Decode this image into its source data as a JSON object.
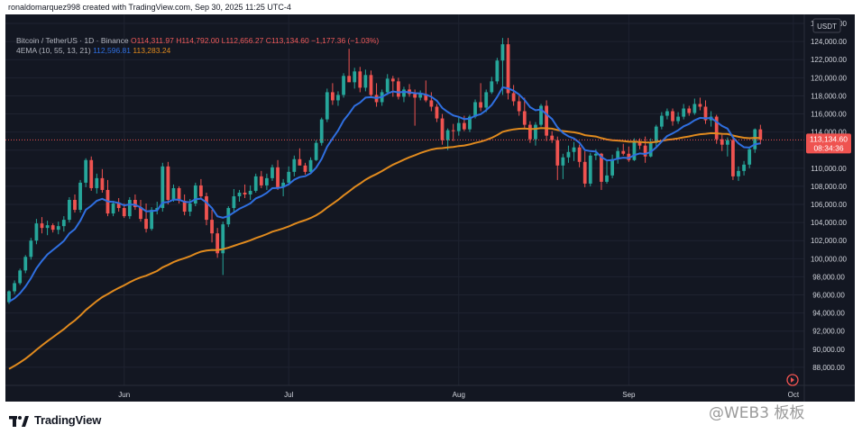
{
  "header": {
    "credit": "ronaldomarquez998 created with TradingView.com, Sep 30, 2025 11:25 UTC-4"
  },
  "legend": {
    "symbol": "Bitcoin / TetherUS · 1D · Binance",
    "open": "O114,311.97",
    "high": "H114,792.00",
    "low": "L112,656.27",
    "close": "C113,134.60",
    "change": "−1,177.36 (−1.03%)",
    "indicator": "4EMA (10, 55, 13, 21)",
    "ema_fast": "112,596.81",
    "ema_slow": "113,283.24"
  },
  "price_badge": {
    "price": "113,134.60",
    "countdown": "08:34:36"
  },
  "currency_label": "USDT",
  "footer": {
    "brand": "TradingView",
    "watermark": "@WEB3 板板"
  },
  "colors": {
    "background": "#131722",
    "up": "#26a69a",
    "down": "#ef5350",
    "ema_fast": "#2f6fe0",
    "ema_slow": "#e08a1e"
  },
  "chart_data": {
    "type": "candlestick",
    "title": "Bitcoin / TetherUS · 1D · Binance",
    "ylim": [
      86000,
      127000
    ],
    "y_ticks": [
      88000,
      90000,
      92000,
      94000,
      96000,
      98000,
      100000,
      102000,
      104000,
      106000,
      108000,
      110000,
      112000,
      114000,
      116000,
      118000,
      120000,
      122000,
      124000,
      126000
    ],
    "y_tick_labels": [
      "88,000.00",
      "90,000.00",
      "92,000.00",
      "94,000.00",
      "96,000.00",
      "98,000.00",
      "100,000.00",
      "102,000.00",
      "104,000.00",
      "106,000.00",
      "108,000.00",
      "110,000.00",
      "112,000.00",
      "114,000.00",
      "116,000.00",
      "118,000.00",
      "120,000.00",
      "122,000.00",
      "124,000.00",
      "126,000.00"
    ],
    "x_labels": [
      {
        "label": "Jun",
        "index": 21
      },
      {
        "label": "Jul",
        "index": 51
      },
      {
        "label": "Aug",
        "index": 82
      },
      {
        "label": "Sep",
        "index": 113
      },
      {
        "label": "Oct",
        "index": 143
      }
    ],
    "x_count": 145,
    "grid": true,
    "last_price": 113134.6,
    "candles": [
      [
        95200,
        96500,
        95000,
        96400
      ],
      [
        96400,
        97600,
        96100,
        97300
      ],
      [
        97300,
        98900,
        97100,
        98700
      ],
      [
        98700,
        100400,
        98400,
        100200
      ],
      [
        100200,
        102300,
        99900,
        102000
      ],
      [
        102000,
        104400,
        101600,
        103900
      ],
      [
        103900,
        104600,
        102800,
        103400
      ],
      [
        103400,
        104200,
        102600,
        103700
      ],
      [
        103700,
        103900,
        102900,
        103200
      ],
      [
        103200,
        104100,
        102700,
        103600
      ],
      [
        103600,
        104700,
        103000,
        104300
      ],
      [
        104300,
        106800,
        104000,
        106500
      ],
      [
        106500,
        107100,
        105100,
        105400
      ],
      [
        105400,
        108700,
        105100,
        108400
      ],
      [
        108400,
        111100,
        107900,
        110900
      ],
      [
        110900,
        111300,
        107500,
        107800
      ],
      [
        107800,
        109400,
        107200,
        108900
      ],
      [
        108900,
        109900,
        107300,
        107600
      ],
      [
        107600,
        108700,
        104700,
        105000
      ],
      [
        105000,
        106400,
        104700,
        106100
      ],
      [
        106100,
        106700,
        105200,
        105600
      ],
      [
        105600,
        106100,
        104500,
        104700
      ],
      [
        104700,
        106800,
        104400,
        106500
      ],
      [
        106500,
        107100,
        105400,
        105700
      ],
      [
        105700,
        106500,
        104100,
        104400
      ],
      [
        104400,
        106100,
        102900,
        103300
      ],
      [
        103300,
        105700,
        103100,
        105400
      ],
      [
        105400,
        106300,
        104900,
        105600
      ],
      [
        105600,
        110600,
        105200,
        110200
      ],
      [
        110200,
        110700,
        106000,
        106500
      ],
      [
        106500,
        108200,
        106300,
        107800
      ],
      [
        107800,
        108000,
        106100,
        106400
      ],
      [
        106400,
        107100,
        104800,
        105200
      ],
      [
        105200,
        106600,
        104700,
        106100
      ],
      [
        106100,
        108400,
        105800,
        108100
      ],
      [
        108100,
        108800,
        106700,
        106900
      ],
      [
        106900,
        107300,
        103700,
        104300
      ],
      [
        104300,
        105400,
        101800,
        102800
      ],
      [
        102800,
        103400,
        100100,
        100600
      ],
      [
        100600,
        104100,
        98200,
        103800
      ],
      [
        103800,
        105800,
        103500,
        105600
      ],
      [
        105600,
        107700,
        105100,
        106900
      ],
      [
        106900,
        107600,
        106300,
        107300
      ],
      [
        107300,
        108200,
        106700,
        107100
      ],
      [
        107100,
        108100,
        106500,
        107500
      ],
      [
        107500,
        109400,
        107300,
        109100
      ],
      [
        109100,
        109700,
        107800,
        108100
      ],
      [
        108100,
        109400,
        107600,
        108900
      ],
      [
        108900,
        110400,
        108600,
        110100
      ],
      [
        110100,
        110900,
        107600,
        107900
      ],
      [
        107900,
        108800,
        106900,
        108400
      ],
      [
        108400,
        110200,
        108100,
        109600
      ],
      [
        109600,
        111400,
        109100,
        111000
      ],
      [
        111000,
        112200,
        110400,
        110300
      ],
      [
        110300,
        110600,
        109300,
        109600
      ],
      [
        109600,
        111200,
        109400,
        110900
      ],
      [
        110900,
        113100,
        110800,
        112800
      ],
      [
        112800,
        115600,
        112500,
        115400
      ],
      [
        115400,
        118800,
        115100,
        118400
      ],
      [
        118400,
        119400,
        117000,
        117500
      ],
      [
        117500,
        118500,
        116900,
        118100
      ],
      [
        118100,
        120500,
        117800,
        120200
      ],
      [
        120200,
        123200,
        119800,
        119500
      ],
      [
        119500,
        121100,
        118800,
        120700
      ],
      [
        120700,
        121200,
        118400,
        118900
      ],
      [
        118900,
        120900,
        118500,
        120300
      ],
      [
        120300,
        120800,
        117900,
        118100
      ],
      [
        118100,
        119400,
        116800,
        117300
      ],
      [
        117300,
        118700,
        116900,
        118400
      ],
      [
        118400,
        120400,
        118100,
        119900
      ],
      [
        119900,
        120200,
        117900,
        119600
      ],
      [
        119600,
        120000,
        117600,
        117900
      ],
      [
        117900,
        119000,
        117300,
        118700
      ],
      [
        118700,
        119300,
        117900,
        118200
      ],
      [
        118200,
        118700,
        114700,
        117800
      ],
      [
        117800,
        118600,
        117500,
        118200
      ],
      [
        118200,
        119700,
        117300,
        117500
      ],
      [
        117500,
        118400,
        116300,
        116800
      ],
      [
        116800,
        117100,
        115100,
        115500
      ],
      [
        115500,
        116000,
        112600,
        113100
      ],
      [
        113100,
        114400,
        112000,
        114200
      ],
      [
        114200,
        114900,
        113000,
        114100
      ],
      [
        114100,
        115600,
        113600,
        115000
      ],
      [
        115000,
        115800,
        114100,
        114300
      ],
      [
        114300,
        115900,
        114000,
        115700
      ],
      [
        115700,
        117600,
        115500,
        117300
      ],
      [
        117300,
        119400,
        116300,
        116700
      ],
      [
        116700,
        118700,
        116200,
        118400
      ],
      [
        118400,
        120100,
        118200,
        119600
      ],
      [
        119600,
        122200,
        119300,
        121900
      ],
      [
        121900,
        124400,
        118100,
        123700
      ],
      [
        123700,
        124400,
        117600,
        118300
      ],
      [
        118300,
        119200,
        116900,
        117400
      ],
      [
        117400,
        118000,
        115800,
        116300
      ],
      [
        116300,
        117800,
        114400,
        114800
      ],
      [
        114800,
        115200,
        112800,
        113200
      ],
      [
        113200,
        115100,
        112500,
        114800
      ],
      [
        114800,
        117100,
        114600,
        116900
      ],
      [
        116900,
        117500,
        113000,
        113600
      ],
      [
        113600,
        114100,
        112800,
        113100
      ],
      [
        113100,
        113500,
        108700,
        110300
      ],
      [
        110300,
        111600,
        108800,
        111200
      ],
      [
        111200,
        112500,
        110600,
        111800
      ],
      [
        111800,
        112900,
        110800,
        112300
      ],
      [
        112300,
        112600,
        110100,
        110700
      ],
      [
        110700,
        111900,
        107900,
        108300
      ],
      [
        108300,
        111700,
        108000,
        111400
      ],
      [
        111400,
        112100,
        110900,
        111600
      ],
      [
        111600,
        111700,
        107600,
        108500
      ],
      [
        108500,
        110900,
        108300,
        109200
      ],
      [
        109200,
        111500,
        108900,
        111000
      ],
      [
        111000,
        112300,
        110500,
        111900
      ],
      [
        111900,
        112700,
        111400,
        111600
      ],
      [
        111600,
        112400,
        110700,
        110900
      ],
      [
        110900,
        113300,
        110800,
        112900
      ],
      [
        112900,
        113300,
        112100,
        112500
      ],
      [
        112500,
        113500,
        110600,
        111300
      ],
      [
        111300,
        113300,
        111200,
        112800
      ],
      [
        112800,
        114800,
        112400,
        114600
      ],
      [
        114600,
        116200,
        114300,
        115800
      ],
      [
        115800,
        116600,
        115400,
        116300
      ],
      [
        116300,
        116600,
        114700,
        115200
      ],
      [
        115200,
        116200,
        114900,
        115700
      ],
      [
        115700,
        117100,
        115400,
        116600
      ],
      [
        116600,
        116900,
        115800,
        116100
      ],
      [
        116100,
        117700,
        115900,
        117100
      ],
      [
        117100,
        117800,
        116400,
        116800
      ],
      [
        116800,
        117500,
        114900,
        115300
      ],
      [
        115300,
        116300,
        114600,
        115700
      ],
      [
        115700,
        115900,
        112700,
        113200
      ],
      [
        113200,
        113700,
        111900,
        112600
      ],
      [
        112600,
        113400,
        111300,
        113100
      ],
      [
        113100,
        113300,
        108700,
        109100
      ],
      [
        109100,
        110200,
        108600,
        109700
      ],
      [
        109700,
        110800,
        109200,
        110400
      ],
      [
        110400,
        112300,
        110000,
        112100
      ],
      [
        112100,
        114400,
        111700,
        114300
      ],
      [
        114300,
        114800,
        112650,
        113135
      ]
    ]
  }
}
